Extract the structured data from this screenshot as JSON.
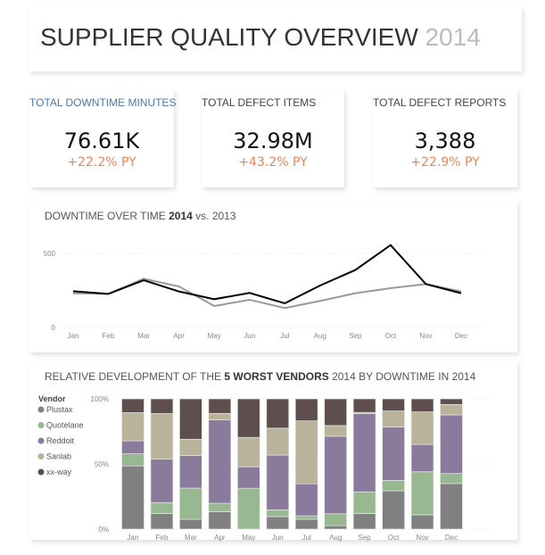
{
  "header": {
    "title": "SUPPLIER QUALITY OVERVIEW",
    "year": "2014"
  },
  "kpis": [
    {
      "label": "TOTAL DOWNTIME MINUTES",
      "value": "76.61K",
      "py": "+22.2% PY"
    },
    {
      "label": "TOTAL DEFECT ITEMS",
      "value": "32.98M",
      "py": "+43.2% PY"
    },
    {
      "label": "TOTAL DEFECT REPORTS",
      "value": "3,388",
      "py": "+22.9% PY"
    }
  ],
  "line_title": {
    "a": "DOWNTIME OVER TIME ",
    "b": "2014",
    "c": " vs. 2013"
  },
  "bar_title": {
    "a": "RELATIVE DEVELOPMENT OF THE ",
    "b": "5 WORST VENDORS",
    "c": " 2014 BY DOWNTIME IN 2014"
  },
  "chart_data": [
    {
      "type": "line",
      "title": "DOWNTIME OVER TIME 2014 vs. 2013",
      "categories": [
        "Jan",
        "Feb",
        "Mar",
        "Apr",
        "May",
        "Jun",
        "Jul",
        "Aug",
        "Sep",
        "Oct",
        "Nov",
        "Dec"
      ],
      "yticks": [
        "0",
        "500"
      ],
      "ylim": [
        0,
        500
      ],
      "series": [
        {
          "name": "2014",
          "color": "#000000",
          "values": [
            245,
            227,
            319,
            243,
            191,
            233,
            163,
            283,
            388,
            556,
            293,
            231
          ]
        },
        {
          "name": "2013",
          "color": "#999999",
          "values": [
            231,
            227,
            329,
            277,
            145,
            187,
            131,
            179,
            231,
            265,
            293,
            243
          ]
        }
      ]
    },
    {
      "type": "bar",
      "stacked": "percent",
      "title": "RELATIVE DEVELOPMENT OF THE 5 WORST VENDORS 2014 BY DOWNTIME IN 2014",
      "legend_title": "Vendor",
      "categories": [
        "Jan",
        "Feb",
        "Mar",
        "Apr",
        "May",
        "Jun",
        "Jul",
        "Aug",
        "Sep",
        "Oct",
        "Nov",
        "Dec"
      ],
      "yticks": [
        "0%",
        "50%",
        "100%"
      ],
      "series": [
        {
          "name": "Plustax",
          "color": "#808080",
          "values": [
            48.5,
            12,
            7.5,
            13.4,
            0,
            9.6,
            7.5,
            2.7,
            12,
            29.4,
            11,
            35
          ]
        },
        {
          "name": "Quotelane",
          "color": "#98b892",
          "values": [
            9.3,
            8.4,
            24,
            6.4,
            31.4,
            5.2,
            2.7,
            9.1,
            16.6,
            8,
            33,
            7.7
          ]
        },
        {
          "name": "Reddoit",
          "color": "#8a7a9c",
          "values": [
            10,
            33.3,
            25,
            64,
            16.4,
            42,
            24.6,
            59.5,
            60,
            41,
            21,
            45
          ]
        },
        {
          "name": "Sanlab",
          "color": "#b9b39c",
          "values": [
            21.6,
            35,
            12.5,
            5,
            22.6,
            20.7,
            48.3,
            8.2,
            1,
            12.3,
            25,
            8
          ]
        },
        {
          "name": "xx-way",
          "color": "#5f4e4e",
          "values": [
            10.6,
            11.3,
            31,
            11.2,
            29.6,
            22.5,
            16.9,
            20.5,
            10.4,
            9.3,
            10,
            4.3
          ]
        }
      ]
    }
  ]
}
